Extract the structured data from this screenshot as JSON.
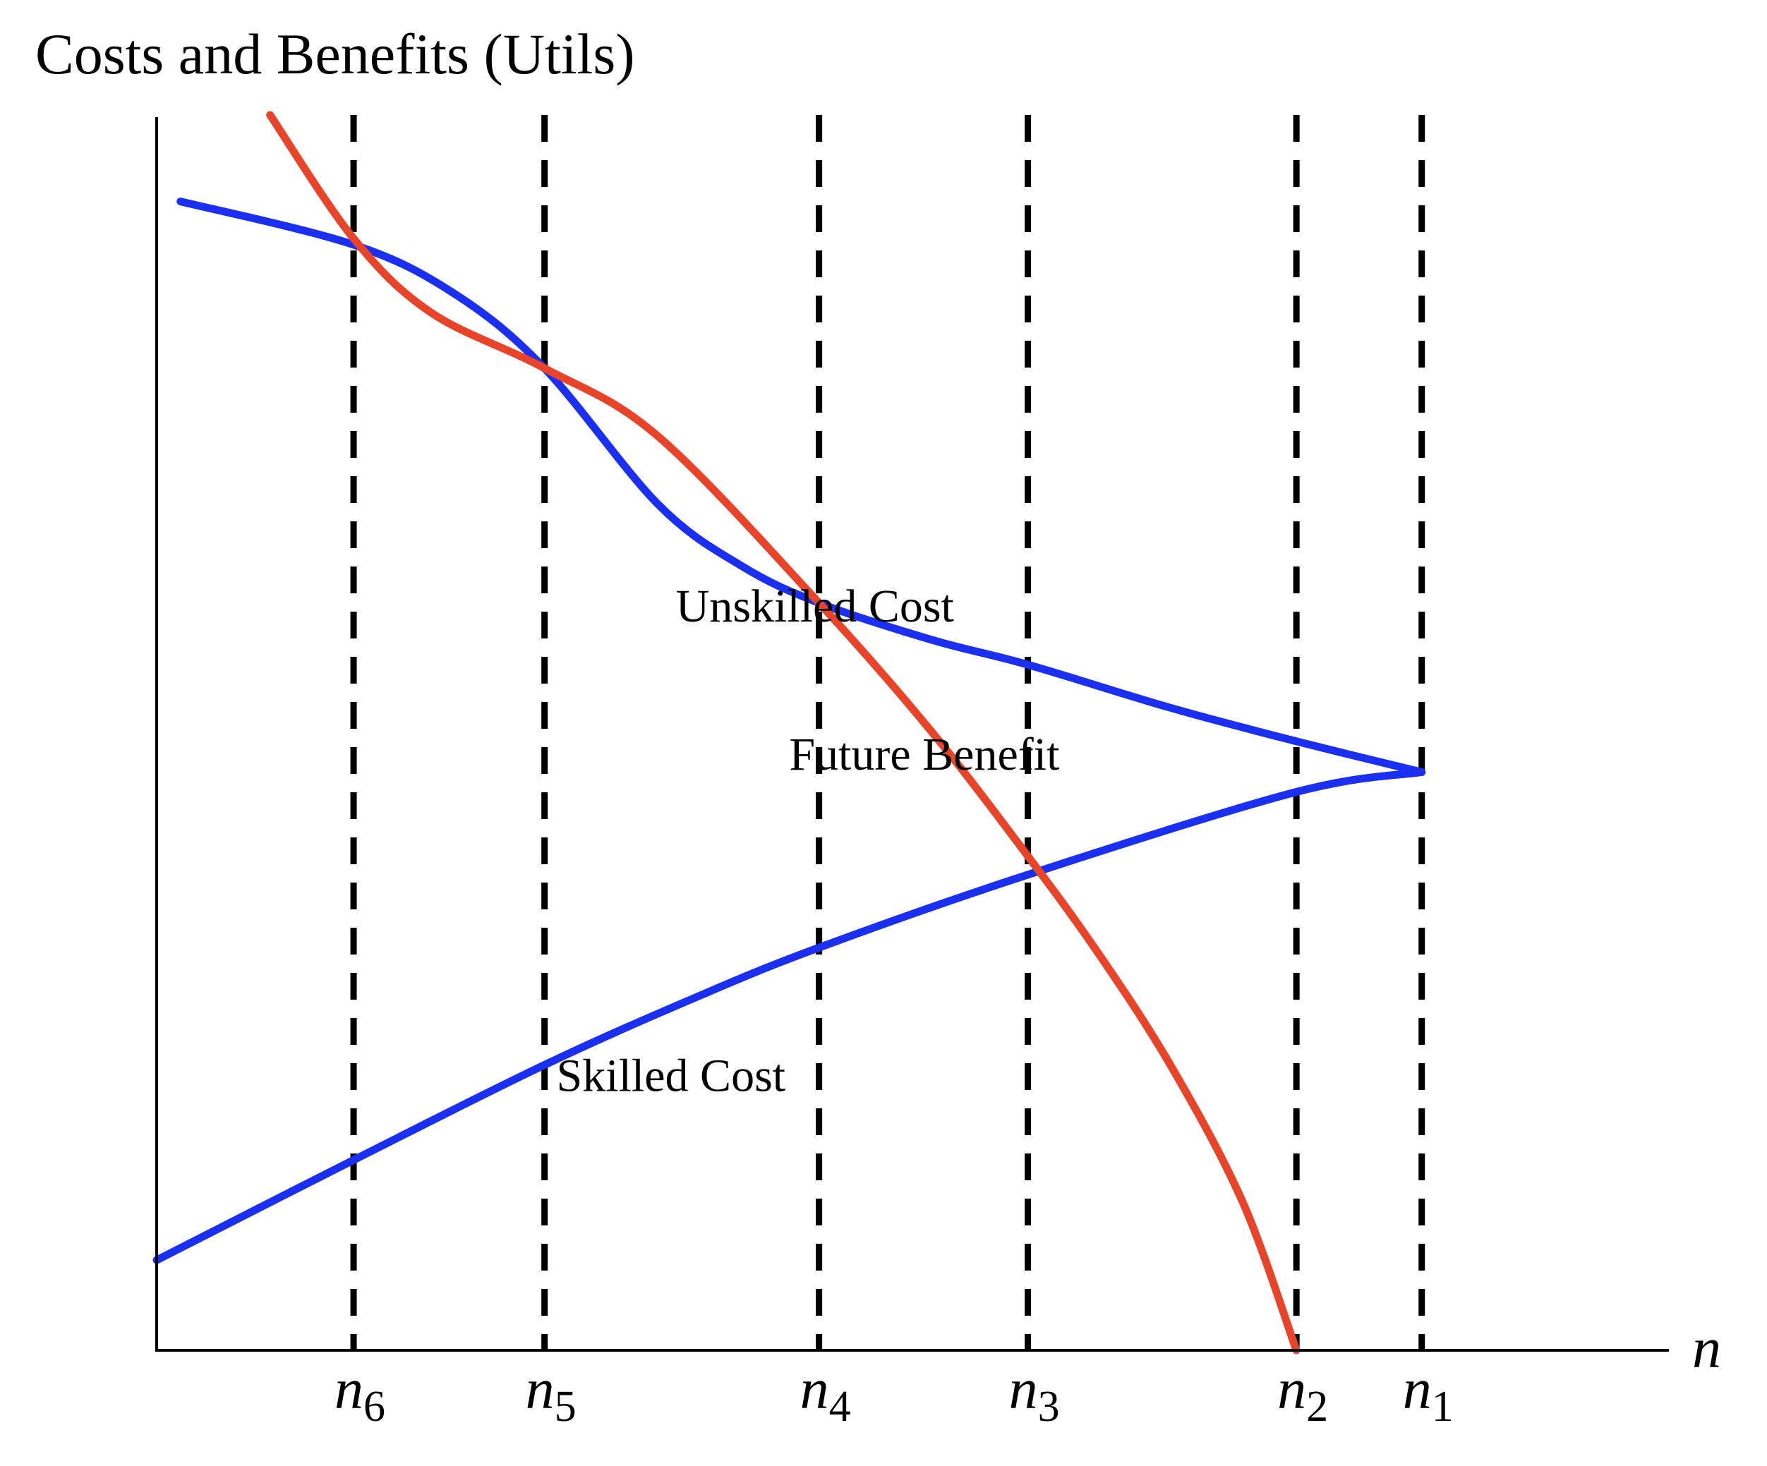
{
  "chart_data": {
    "type": "line",
    "title": "Costs and Benefits (Utils)",
    "xlabel": "n",
    "ylabel": "",
    "grid": false,
    "legend": "none",
    "x_ticks": [
      {
        "main": "n",
        "sub": "6",
        "x": 1.65
      },
      {
        "main": "n",
        "sub": "5",
        "x": 3.25
      },
      {
        "main": "n",
        "sub": "4",
        "x": 5.55
      },
      {
        "main": "n",
        "sub": "3",
        "x": 7.3
      },
      {
        "main": "n",
        "sub": "2",
        "x": 9.55
      },
      {
        "main": "n",
        "sub": "1",
        "x": 10.6
      }
    ],
    "xlim": [
      0,
      11.4
    ],
    "ylim": [
      0,
      100
    ],
    "series": [
      {
        "name": "Unskilled Cost",
        "color": "#1a2ff0",
        "curve": "smooth",
        "label_at": {
          "x": 4.35,
          "y": 59
        },
        "points": [
          [
            0.2,
            93
          ],
          [
            1.65,
            89.5
          ],
          [
            2.5,
            85.5
          ],
          [
            3.25,
            79.5
          ],
          [
            4.2,
            68.5
          ],
          [
            4.9,
            63.5
          ],
          [
            5.55,
            60.5
          ],
          [
            6.5,
            57.5
          ],
          [
            7.3,
            55.5
          ],
          [
            8.5,
            52
          ],
          [
            9.55,
            49.3
          ],
          [
            10.6,
            46.8
          ]
        ]
      },
      {
        "name": "Future Benefit",
        "color": "#e8442a",
        "curve": "smooth",
        "label_at": {
          "x": 5.3,
          "y": 47
        },
        "points": [
          [
            0.95,
            100
          ],
          [
            1.65,
            90
          ],
          [
            2.3,
            84
          ],
          [
            3.25,
            79.5
          ],
          [
            4.2,
            74
          ],
          [
            5.55,
            60.5
          ],
          [
            6.5,
            50
          ],
          [
            7.3,
            40
          ],
          [
            7.9,
            32
          ],
          [
            8.5,
            23
          ],
          [
            9.1,
            12
          ],
          [
            9.55,
            0
          ]
        ]
      },
      {
        "name": "Skilled Cost",
        "color": "#1a2ff0",
        "curve": "smooth",
        "label_at": {
          "x": 3.35,
          "y": 21
        },
        "points": [
          [
            0,
            7.3
          ],
          [
            1.65,
            15.4
          ],
          [
            3.25,
            23.1
          ],
          [
            4.5,
            28.5
          ],
          [
            5.55,
            32.6
          ],
          [
            7.3,
            38.5
          ],
          [
            9.55,
            45.2
          ],
          [
            10.6,
            46.8
          ]
        ]
      }
    ]
  },
  "colors": {
    "axis": "#000000",
    "guides": "#000000"
  }
}
